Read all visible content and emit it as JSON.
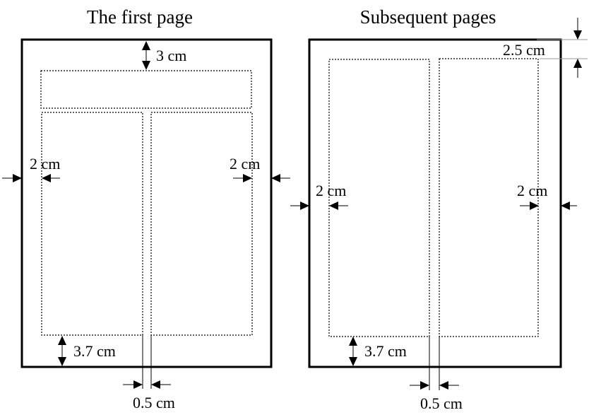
{
  "titles": {
    "first": "The first page",
    "subsequent": "Subsequent pages"
  },
  "labels": {
    "top_first": "3 cm",
    "top_subsequent": "2.5 cm",
    "left_first": "2 cm",
    "right_first": "2 cm",
    "left_subsequent": "2 cm",
    "right_subsequent": "2 cm",
    "bottom_first": "3.7 cm",
    "bottom_subsequent": "3.7 cm",
    "gutter_first": "0.5 cm",
    "gutter_subsequent": "0.5 cm"
  }
}
